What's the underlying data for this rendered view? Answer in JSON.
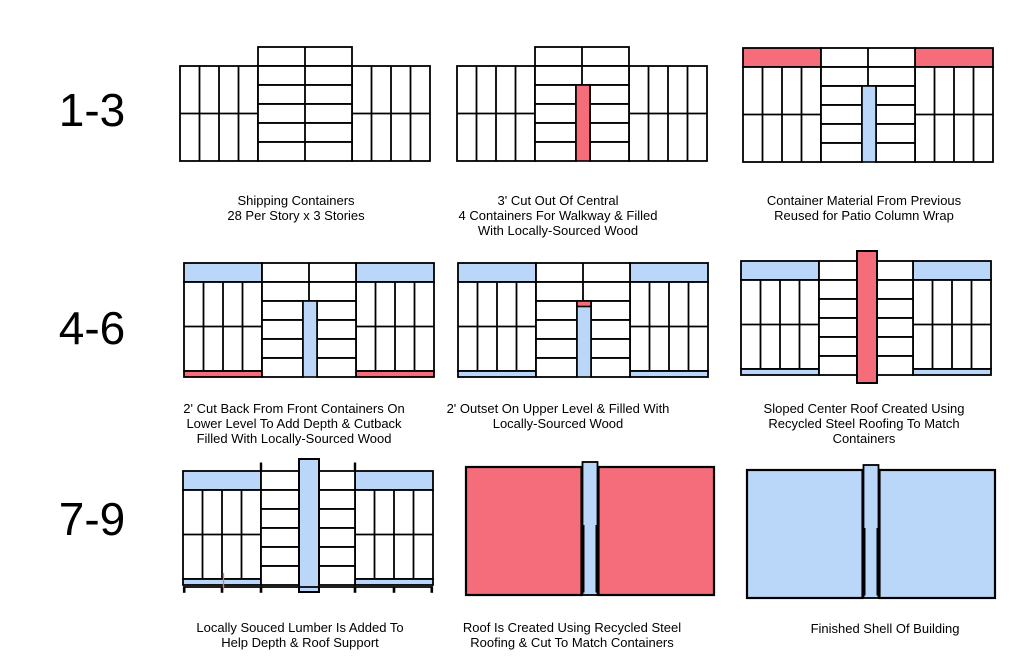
{
  "page": {
    "background": "#ffffff"
  },
  "colors": {
    "red": "#F56C7A",
    "blue": "#BAD6F8",
    "outline": "#000000",
    "fill": "#ffffff"
  },
  "row_labels": [
    {
      "text": "1-3"
    },
    {
      "text": "4-6"
    },
    {
      "text": "7-9"
    }
  ],
  "steps": [
    {
      "step": 1,
      "caption": "Shipping Containers\n28 Per Story x 3 Stories",
      "diagram": {
        "variant": "grid",
        "center_raised": true,
        "wing_top_bar": null,
        "wing_bottom_bar": null,
        "strip": null,
        "ground": false
      }
    },
    {
      "step": 2,
      "caption": "3' Cut Out Of Central\n4 Containers For Walkway & Filled\nWith Locally-Sourced Wood",
      "diagram": {
        "variant": "grid",
        "center_raised": true,
        "wing_top_bar": null,
        "wing_bottom_bar": null,
        "strip": {
          "color": "red",
          "style": "narrow",
          "cap": null
        },
        "ground": false
      }
    },
    {
      "step": 3,
      "caption": "Container Material From Previous\nReused for Patio Column Wrap",
      "diagram": {
        "variant": "grid",
        "center_raised": false,
        "wing_top_bar": "red",
        "wing_bottom_bar": null,
        "strip": {
          "color": "blue",
          "style": "narrow",
          "cap": null
        },
        "ground": false
      }
    },
    {
      "step": 4,
      "caption": "2' Cut Back From Front Containers On\nLower Level To Add Depth & Cutback\nFilled With Locally-Sourced Wood",
      "diagram": {
        "variant": "grid",
        "center_raised": false,
        "wing_top_bar": "blue",
        "wing_bottom_bar": "red",
        "strip": {
          "color": "blue",
          "style": "narrow",
          "cap": null
        },
        "ground": false
      }
    },
    {
      "step": 5,
      "caption": "2' Outset On Upper Level & Filled With\nLocally-Sourced Wood",
      "diagram": {
        "variant": "grid",
        "center_raised": false,
        "wing_top_bar": "blue",
        "wing_bottom_bar": "blue",
        "strip": {
          "color": "blue",
          "style": "narrow",
          "cap": "red"
        },
        "ground": false
      }
    },
    {
      "step": 6,
      "caption": "Sloped Center Roof Created Using\nRecycled Steel Roofing To Match\nContainers",
      "diagram": {
        "variant": "grid",
        "center_raised": false,
        "wing_top_bar": "blue",
        "wing_bottom_bar": "blue",
        "strip": {
          "color": "red",
          "style": "tall",
          "cap": null
        },
        "ground": false
      }
    },
    {
      "step": 7,
      "caption": "Locally Souced Lumber Is Added To\nHelp Depth & Roof Support",
      "diagram": {
        "variant": "grid",
        "center_raised": false,
        "wing_top_bar": "blue",
        "wing_bottom_bar": "blue",
        "strip": {
          "color": "blue",
          "style": "tall",
          "cap": null
        },
        "ground": true
      }
    },
    {
      "step": 8,
      "caption": "Roof Is Created Using Recycled Steel\nRoofing & Cut To Match Containers",
      "diagram": {
        "variant": "solid",
        "block_color": "red",
        "strip_color": "blue"
      }
    },
    {
      "step": 9,
      "caption": "Finished Shell Of Building",
      "diagram": {
        "variant": "solid",
        "block_color": "blue",
        "strip_color": "blue"
      }
    }
  ]
}
